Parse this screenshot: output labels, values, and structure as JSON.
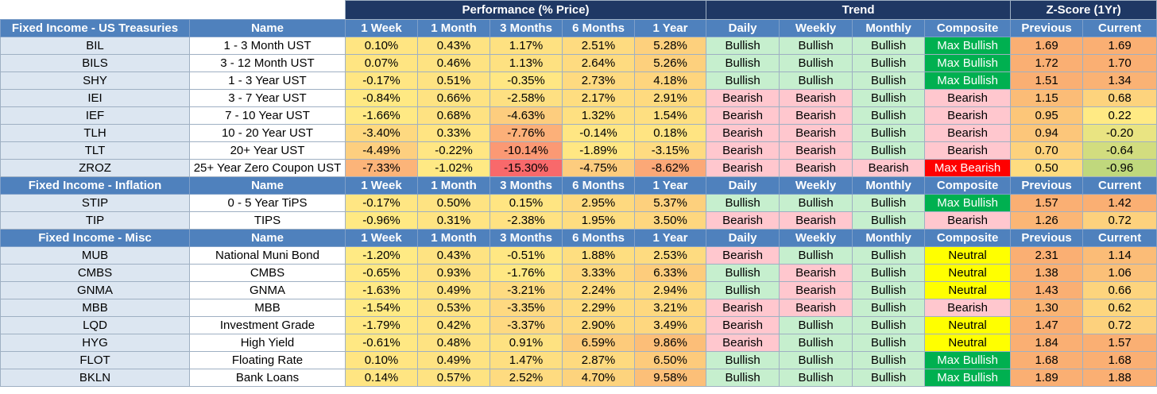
{
  "group_headers": [
    {
      "label": "Performance (% Price)",
      "span": 5
    },
    {
      "label": "Trend",
      "span": 4
    },
    {
      "label": "Z-Score (1Yr)",
      "span": 2
    }
  ],
  "column_labels": [
    "Name",
    "1 Week",
    "1 Month",
    "3 Months",
    "6 Months",
    "1 Year",
    "Daily",
    "Weekly",
    "Monthly",
    "Composite",
    "Previous",
    "Current"
  ],
  "sections": [
    {
      "title": "Fixed Income - US Treasuries",
      "rows": [
        {
          "ticker": "BIL",
          "name": "1 - 3 Month UST",
          "perf": [
            "0.10%",
            "0.43%",
            "1.17%",
            "2.51%",
            "5.28%"
          ],
          "trend": [
            "Bullish",
            "Bullish",
            "Bullish",
            "Max Bullish"
          ],
          "z": [
            "1.69",
            "1.69"
          ]
        },
        {
          "ticker": "BILS",
          "name": "3 - 12 Month UST",
          "perf": [
            "0.07%",
            "0.46%",
            "1.13%",
            "2.64%",
            "5.26%"
          ],
          "trend": [
            "Bullish",
            "Bullish",
            "Bullish",
            "Max Bullish"
          ],
          "z": [
            "1.72",
            "1.70"
          ]
        },
        {
          "ticker": "SHY",
          "name": "1 - 3 Year UST",
          "perf": [
            "-0.17%",
            "0.51%",
            "-0.35%",
            "2.73%",
            "4.18%"
          ],
          "trend": [
            "Bullish",
            "Bullish",
            "Bullish",
            "Max Bullish"
          ],
          "z": [
            "1.51",
            "1.34"
          ]
        },
        {
          "ticker": "IEI",
          "name": "3 - 7 Year UST",
          "perf": [
            "-0.84%",
            "0.66%",
            "-2.58%",
            "2.17%",
            "2.91%"
          ],
          "trend": [
            "Bearish",
            "Bearish",
            "Bullish",
            "Bearish"
          ],
          "z": [
            "1.15",
            "0.68"
          ]
        },
        {
          "ticker": "IEF",
          "name": "7 - 10 Year UST",
          "perf": [
            "-1.66%",
            "0.68%",
            "-4.63%",
            "1.32%",
            "1.54%"
          ],
          "trend": [
            "Bearish",
            "Bearish",
            "Bullish",
            "Bearish"
          ],
          "z": [
            "0.95",
            "0.22"
          ]
        },
        {
          "ticker": "TLH",
          "name": "10 - 20 Year UST",
          "perf": [
            "-3.40%",
            "0.33%",
            "-7.76%",
            "-0.14%",
            "0.18%"
          ],
          "trend": [
            "Bearish",
            "Bearish",
            "Bullish",
            "Bearish"
          ],
          "z": [
            "0.94",
            "-0.20"
          ]
        },
        {
          "ticker": "TLT",
          "name": "20+ Year UST",
          "perf": [
            "-4.49%",
            "-0.22%",
            "-10.14%",
            "-1.89%",
            "-3.15%"
          ],
          "trend": [
            "Bearish",
            "Bearish",
            "Bullish",
            "Bearish"
          ],
          "z": [
            "0.70",
            "-0.64"
          ]
        },
        {
          "ticker": "ZROZ",
          "name": "25+ Year Zero Coupon UST",
          "perf": [
            "-7.33%",
            "-1.02%",
            "-15.30%",
            "-4.75%",
            "-8.62%"
          ],
          "trend": [
            "Bearish",
            "Bearish",
            "Bearish",
            "Max Bearish"
          ],
          "z": [
            "0.50",
            "-0.96"
          ]
        }
      ]
    },
    {
      "title": "Fixed Income - Inflation",
      "rows": [
        {
          "ticker": "STIP",
          "name": "0 - 5 Year TiPS",
          "perf": [
            "-0.17%",
            "0.50%",
            "0.15%",
            "2.95%",
            "5.37%"
          ],
          "trend": [
            "Bullish",
            "Bullish",
            "Bullish",
            "Max Bullish"
          ],
          "z": [
            "1.57",
            "1.42"
          ]
        },
        {
          "ticker": "TIP",
          "name": "TIPS",
          "perf": [
            "-0.96%",
            "0.31%",
            "-2.38%",
            "1.95%",
            "3.50%"
          ],
          "trend": [
            "Bearish",
            "Bearish",
            "Bullish",
            "Bearish"
          ],
          "z": [
            "1.26",
            "0.72"
          ]
        }
      ]
    },
    {
      "title": "Fixed Income - Misc",
      "rows": [
        {
          "ticker": "MUB",
          "name": "National Muni Bond",
          "perf": [
            "-1.20%",
            "0.43%",
            "-0.51%",
            "1.88%",
            "2.53%"
          ],
          "trend": [
            "Bearish",
            "Bullish",
            "Bullish",
            "Neutral"
          ],
          "z": [
            "2.31",
            "1.14"
          ]
        },
        {
          "ticker": "CMBS",
          "name": "CMBS",
          "perf": [
            "-0.65%",
            "0.93%",
            "-1.76%",
            "3.33%",
            "6.33%"
          ],
          "trend": [
            "Bullish",
            "Bearish",
            "Bullish",
            "Neutral"
          ],
          "z": [
            "1.38",
            "1.06"
          ]
        },
        {
          "ticker": "GNMA",
          "name": "GNMA",
          "perf": [
            "-1.63%",
            "0.49%",
            "-3.21%",
            "2.24%",
            "2.94%"
          ],
          "trend": [
            "Bullish",
            "Bearish",
            "Bullish",
            "Neutral"
          ],
          "z": [
            "1.43",
            "0.66"
          ]
        },
        {
          "ticker": "MBB",
          "name": "MBB",
          "perf": [
            "-1.54%",
            "0.53%",
            "-3.35%",
            "2.29%",
            "3.21%"
          ],
          "trend": [
            "Bearish",
            "Bearish",
            "Bullish",
            "Bearish"
          ],
          "z": [
            "1.30",
            "0.62"
          ]
        },
        {
          "ticker": "LQD",
          "name": "Investment Grade",
          "perf": [
            "-1.79%",
            "0.42%",
            "-3.37%",
            "2.90%",
            "3.49%"
          ],
          "trend": [
            "Bearish",
            "Bullish",
            "Bullish",
            "Neutral"
          ],
          "z": [
            "1.47",
            "0.72"
          ]
        },
        {
          "ticker": "HYG",
          "name": "High Yield",
          "perf": [
            "-0.61%",
            "0.48%",
            "0.91%",
            "6.59%",
            "9.86%"
          ],
          "trend": [
            "Bearish",
            "Bullish",
            "Bullish",
            "Neutral"
          ],
          "z": [
            "1.84",
            "1.57"
          ]
        },
        {
          "ticker": "FLOT",
          "name": "Floating Rate",
          "perf": [
            "0.10%",
            "0.49%",
            "1.47%",
            "2.87%",
            "6.50%"
          ],
          "trend": [
            "Bullish",
            "Bullish",
            "Bullish",
            "Max Bullish"
          ],
          "z": [
            "1.68",
            "1.68"
          ]
        },
        {
          "ticker": "BKLN",
          "name": "Bank Loans",
          "perf": [
            "0.14%",
            "0.57%",
            "2.52%",
            "4.70%",
            "9.58%"
          ],
          "trend": [
            "Bullish",
            "Bullish",
            "Bullish",
            "Max Bullish"
          ],
          "z": [
            "1.89",
            "1.88"
          ]
        }
      ]
    }
  ]
}
